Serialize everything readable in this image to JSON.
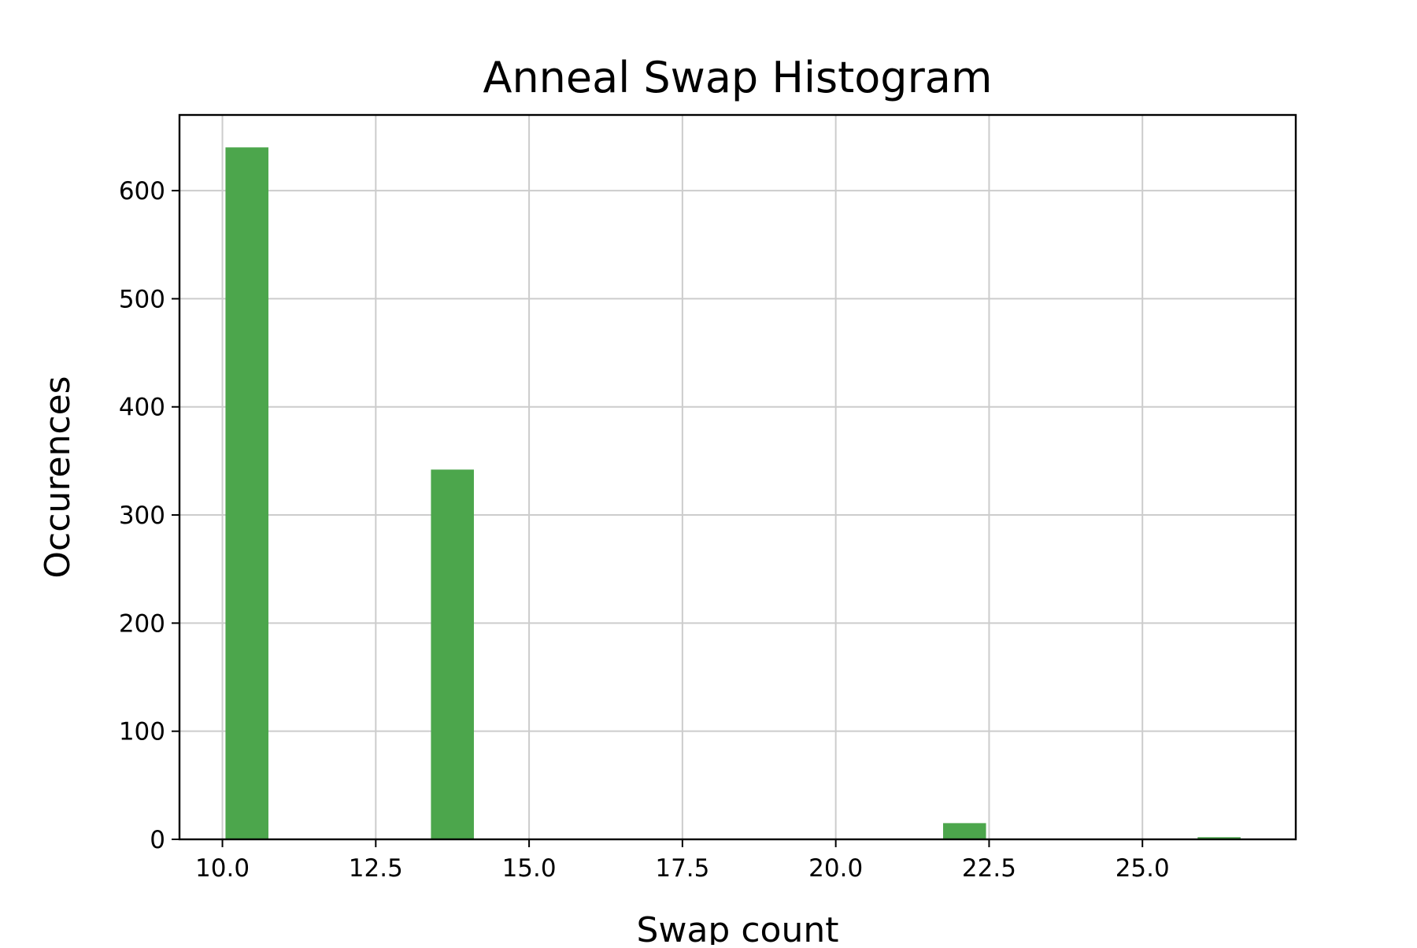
{
  "chart_data": {
    "type": "bar",
    "title": "Anneal Swap Histogram",
    "xlabel": "Swap count",
    "ylabel": "Occurences",
    "xlim": [
      9.3,
      27.5
    ],
    "ylim": [
      0,
      670
    ],
    "xticks": [
      10.0,
      12.5,
      15.0,
      17.5,
      20.0,
      22.5,
      25.0
    ],
    "xtick_labels": [
      "10.0",
      "12.5",
      "15.0",
      "17.5",
      "20.0",
      "22.5",
      "25.0"
    ],
    "yticks": [
      0,
      100,
      200,
      300,
      400,
      500,
      600
    ],
    "ytick_labels": [
      "0",
      "100",
      "200",
      "300",
      "400",
      "500",
      "600"
    ],
    "bars": [
      {
        "x0": 10.05,
        "x1": 10.75,
        "value": 640
      },
      {
        "x0": 13.4,
        "x1": 14.1,
        "value": 342
      },
      {
        "x0": 21.75,
        "x1": 22.45,
        "value": 15
      },
      {
        "x0": 25.9,
        "x1": 26.6,
        "value": 2
      }
    ],
    "bar_color": "#4ca64c",
    "grid": true,
    "grid_color": "#cccccc"
  }
}
